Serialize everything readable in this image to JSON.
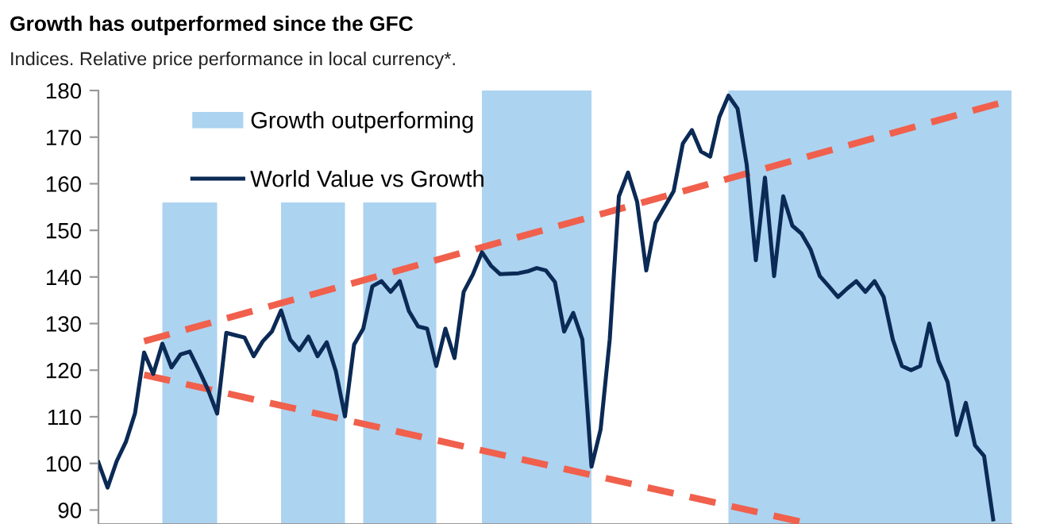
{
  "chart_data": {
    "type": "line",
    "title": "Growth has outperformed since the GFC",
    "subtitle": "Indices. Relative price performance in local currency*.",
    "categories": [
      null,
      null,
      null,
      null,
      null,
      null,
      null,
      null,
      null,
      null,
      null,
      null,
      null,
      null,
      null,
      null,
      null,
      null,
      null,
      null,
      null,
      null,
      null,
      null,
      null,
      null,
      null,
      null,
      null,
      null,
      null,
      null,
      null,
      null,
      null,
      null,
      null,
      null,
      null,
      null,
      null,
      null,
      null,
      null,
      null,
      null,
      null,
      null,
      null,
      null,
      null,
      null,
      null,
      null,
      null,
      null,
      null,
      null,
      null,
      null,
      null,
      null,
      null,
      null,
      null,
      null,
      null,
      null,
      null,
      null,
      null,
      null,
      null,
      null,
      null,
      null,
      null,
      null,
      null,
      null,
      null,
      null,
      null,
      null,
      null,
      null,
      null,
      null,
      null,
      null,
      null,
      null,
      null,
      null,
      null,
      null,
      null,
      null,
      null,
      null,
      null
    ],
    "ylim": [
      87,
      180
    ],
    "yticks": [
      90,
      100,
      110,
      120,
      130,
      140,
      150,
      160,
      170,
      180
    ],
    "tick_labels": "y",
    "grid": false,
    "legend": "top left",
    "series": [
      {
        "name": "Growth outperforming",
        "type": "area",
        "color": "#acd3f0",
        "values": [
          null,
          null,
          null,
          null,
          null,
          null,
          null,
          156,
          156,
          156,
          156,
          156,
          156,
          156,
          null,
          null,
          null,
          null,
          null,
          null,
          156,
          156,
          156,
          156,
          156,
          156,
          156,
          156,
          null,
          156,
          156,
          156,
          156,
          156,
          156,
          156,
          156,
          156,
          null,
          null,
          null,
          null,
          180,
          180,
          180,
          180,
          180,
          180,
          180,
          180,
          180,
          180,
          180,
          180,
          180,
          null,
          null,
          null,
          null,
          null,
          null,
          null,
          null,
          null,
          null,
          null,
          null,
          null,
          null,
          180,
          180,
          180,
          180,
          180,
          180,
          180,
          180,
          180,
          180,
          180,
          180,
          180,
          180,
          180,
          180,
          180,
          180,
          180,
          180,
          180,
          180,
          180,
          180,
          180,
          180,
          180,
          180,
          180,
          180,
          180,
          180
        ]
      },
      {
        "color": "#f0604c",
        "line_style": "dashed",
        "values": [
          null,
          null,
          null,
          null,
          null,
          126.2,
          null,
          null,
          null,
          null,
          null,
          null,
          null,
          null,
          null,
          null,
          null,
          null,
          null,
          null,
          null,
          null,
          null,
          null,
          null,
          null,
          null,
          null,
          null,
          null,
          null,
          null,
          null,
          null,
          null,
          null,
          null,
          null,
          null,
          null,
          null,
          null,
          null,
          null,
          null,
          null,
          null,
          null,
          null,
          null,
          null,
          null,
          null,
          null,
          null,
          null,
          null,
          null,
          null,
          null,
          null,
          null,
          null,
          null,
          null,
          null,
          null,
          null,
          null,
          null,
          null,
          null,
          null,
          null,
          null,
          null,
          null,
          null,
          null,
          null,
          null,
          null,
          null,
          null,
          null,
          null,
          null,
          null,
          null,
          null,
          null,
          null,
          null,
          null,
          null,
          null,
          null,
          null,
          null,
          null,
          178
        ]
      },
      {
        "color": "#f0604c",
        "line_style": "dashed",
        "values": [
          null,
          null,
          null,
          null,
          null,
          119,
          null,
          null,
          null,
          null,
          null,
          null,
          null,
          null,
          null,
          null,
          null,
          null,
          null,
          null,
          null,
          null,
          null,
          null,
          null,
          null,
          null,
          null,
          null,
          null,
          null,
          null,
          null,
          null,
          null,
          null,
          null,
          null,
          null,
          null,
          null,
          null,
          null,
          null,
          null,
          null,
          null,
          null,
          null,
          null,
          null,
          null,
          null,
          null,
          null,
          null,
          null,
          null,
          null,
          null,
          null,
          null,
          null,
          null,
          null,
          null,
          null,
          null,
          null,
          null,
          null,
          null,
          null,
          null,
          null,
          null,
          null,
          null,
          87,
          null,
          null,
          null,
          null,
          null,
          null,
          null,
          null,
          null,
          null,
          null,
          null,
          null,
          null,
          null,
          null,
          null,
          null,
          null,
          null,
          null,
          null
        ]
      },
      {
        "name": "World Value vs Growth",
        "color": "#0b2a55",
        "line_style": "solid",
        "values": [
          100.2,
          94.8,
          100.5,
          104.6,
          110.7,
          123.8,
          119.2,
          125.7,
          120.6,
          123.4,
          124,
          120,
          115.8,
          110.7,
          128,
          127.5,
          127,
          123,
          126.2,
          128.3,
          132.8,
          126.6,
          124.3,
          127.2,
          123,
          126,
          119.8,
          110.1,
          125.5,
          128.9,
          138,
          139.1,
          136.8,
          139.1,
          132.7,
          129.4,
          128.9,
          120.9,
          128.9,
          122.6,
          136.8,
          140.5,
          145.3,
          142.4,
          140.6,
          140.7,
          140.8,
          141.2,
          141.9,
          141.4,
          138.9,
          128.3,
          132.3,
          126.6,
          99.3,
          107.3,
          126.6,
          157.3,
          162.4,
          156.1,
          141.4,
          151.6,
          155,
          158.4,
          168.6,
          171.5,
          166.9,
          165.8,
          174.3,
          178.9,
          176.1,
          164.1,
          143.6,
          161.3,
          140.2,
          157.3,
          151,
          149.3,
          145.9,
          140.2,
          138,
          135.7,
          137.5,
          139.1,
          136.8,
          139.1,
          135.7,
          126.6,
          120.9,
          120,
          120.9,
          130,
          122,
          117.5,
          106.1,
          113,
          103.9,
          101.6,
          88,
          null,
          null
        ]
      }
    ]
  }
}
